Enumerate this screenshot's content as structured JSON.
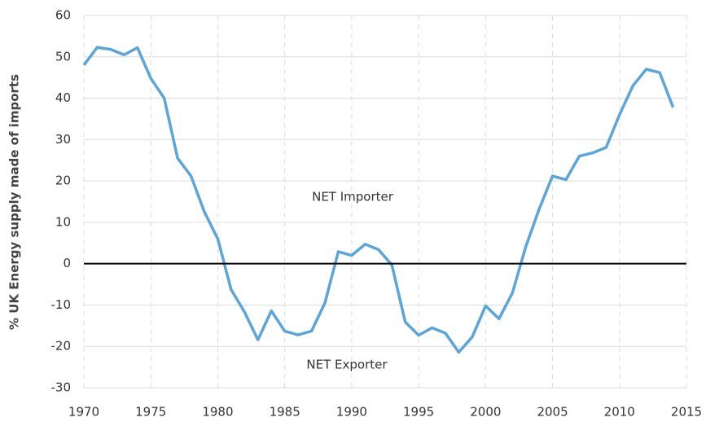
{
  "chart_data": {
    "type": "line",
    "y_label": "% UK Energy supply made of imports",
    "annotations": [
      "NET Importer",
      "NET Exporter"
    ],
    "x": [
      1970,
      1971,
      1972,
      1973,
      1974,
      1975,
      1976,
      1977,
      1978,
      1979,
      1980,
      1981,
      1982,
      1983,
      1984,
      1985,
      1986,
      1987,
      1988,
      1989,
      1990,
      1991,
      1992,
      1993,
      1994,
      1995,
      1996,
      1997,
      1998,
      1999,
      2000,
      2001,
      2002,
      2003,
      2004,
      2005,
      2006,
      2007,
      2008,
      2009,
      2010,
      2011,
      2012,
      2013,
      2014
    ],
    "series": [
      {
        "name": null,
        "color": "#5ba5d9",
        "values": [
          48,
          52.3,
          51.8,
          50.5,
          52.2,
          44.8,
          40,
          25.5,
          21.2,
          12.5,
          6,
          -6.3,
          -11.7,
          -18.4,
          -11.4,
          -16.3,
          -17.2,
          -16.3,
          -9.5,
          2.9,
          2,
          4.7,
          3.4,
          -0.3,
          -14.1,
          -17.3,
          -15.5,
          -16.8,
          -21.4,
          -17.7,
          -10.2,
          -13.3,
          -7.1,
          4.1,
          13.2,
          21.2,
          20.3,
          26,
          26.8,
          28.1,
          36,
          43,
          47,
          46.2,
          37.8
        ]
      }
    ],
    "xlim": [
      1970,
      2015
    ],
    "xticks": [
      1970,
      1975,
      1980,
      1985,
      1990,
      1995,
      2000,
      2005,
      2010,
      2015
    ],
    "ylim": [
      -30,
      60
    ],
    "yticks": [
      -30,
      -20,
      -10,
      0,
      10,
      20,
      30,
      40,
      50,
      60
    ],
    "grid": true
  }
}
